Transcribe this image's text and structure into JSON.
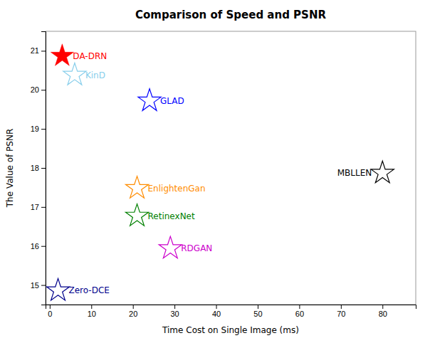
{
  "chart_data": {
    "type": "scatter",
    "title": "Comparison of Speed and PSNR",
    "xlabel": "Time Cost on Single Image (ms)",
    "ylabel": "The Value of PSNR",
    "xlim": [
      -1,
      88
    ],
    "ylim": [
      14.5,
      21.5
    ],
    "xticks": [
      0,
      10,
      20,
      30,
      40,
      50,
      60,
      70,
      80
    ],
    "yticks": [
      15,
      16,
      17,
      18,
      19,
      20,
      21
    ],
    "series": [
      {
        "name": "DA-DRN",
        "color": "#ff0000",
        "marker": "star",
        "x": [
          3
        ],
        "values": [
          20.87
        ]
      },
      {
        "name": "KinD",
        "color": "#87ceeb",
        "marker": "star-open",
        "x": [
          6
        ],
        "values": [
          20.38
        ]
      },
      {
        "name": "GLAD",
        "color": "#0000ff",
        "marker": "star-open",
        "x": [
          24
        ],
        "values": [
          19.72
        ]
      },
      {
        "name": "EnlightenGan",
        "color": "#ff8c00",
        "marker": "star-open",
        "x": [
          21
        ],
        "values": [
          17.48
        ]
      },
      {
        "name": "RetinexNet",
        "color": "#008000",
        "marker": "star-open",
        "x": [
          21
        ],
        "values": [
          16.77
        ]
      },
      {
        "name": "RDGAN",
        "color": "#cc00cc",
        "marker": "star-open",
        "x": [
          29
        ],
        "values": [
          15.94
        ]
      },
      {
        "name": "MBLLEN",
        "color": "#000000",
        "marker": "star-open",
        "x": [
          80
        ],
        "values": [
          17.87
        ]
      },
      {
        "name": "Zero-DCE",
        "color": "#00008b",
        "marker": "star-open",
        "x": [
          2
        ],
        "values": [
          14.86
        ]
      }
    ]
  }
}
